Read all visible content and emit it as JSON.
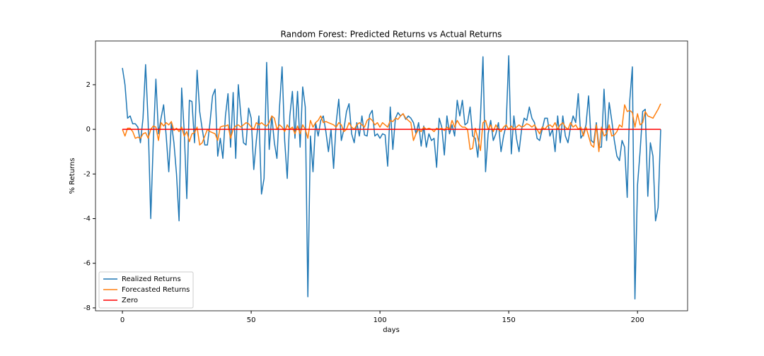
{
  "chart_data": {
    "type": "line",
    "title": "Random Forest: Predicted Returns vs Actual Returns",
    "xlabel": "days",
    "ylabel": "% Returns",
    "xlim": [
      -10.45,
      219.45
    ],
    "ylim": [
      -8.13,
      3.96
    ],
    "xticks": [
      0,
      50,
      100,
      150,
      200
    ],
    "yticks": [
      -8,
      -6,
      -4,
      -2,
      0,
      2
    ],
    "grid": false,
    "legend": "lower left",
    "x": [
      0,
      1,
      2,
      3,
      4,
      5,
      6,
      7,
      8,
      9,
      10,
      11,
      12,
      13,
      14,
      15,
      16,
      17,
      18,
      19,
      20,
      21,
      22,
      23,
      24,
      25,
      26,
      27,
      28,
      29,
      30,
      31,
      32,
      33,
      34,
      35,
      36,
      37,
      38,
      39,
      40,
      41,
      42,
      43,
      44,
      45,
      46,
      47,
      48,
      49,
      50,
      51,
      52,
      53,
      54,
      55,
      56,
      57,
      58,
      59,
      60,
      61,
      62,
      63,
      64,
      65,
      66,
      67,
      68,
      69,
      70,
      71,
      72,
      73,
      74,
      75,
      76,
      77,
      78,
      79,
      80,
      81,
      82,
      83,
      84,
      85,
      86,
      87,
      88,
      89,
      90,
      91,
      92,
      93,
      94,
      95,
      96,
      97,
      98,
      99,
      100,
      101,
      102,
      103,
      104,
      105,
      106,
      107,
      108,
      109,
      110,
      111,
      112,
      113,
      114,
      115,
      116,
      117,
      118,
      119,
      120,
      121,
      122,
      123,
      124,
      125,
      126,
      127,
      128,
      129,
      130,
      131,
      132,
      133,
      134,
      135,
      136,
      137,
      138,
      139,
      140,
      141,
      142,
      143,
      144,
      145,
      146,
      147,
      148,
      149,
      150,
      151,
      152,
      153,
      154,
      155,
      156,
      157,
      158,
      159,
      160,
      161,
      162,
      163,
      164,
      165,
      166,
      167,
      168,
      169,
      170,
      171,
      172,
      173,
      174,
      175,
      176,
      177,
      178,
      179,
      180,
      181,
      182,
      183,
      184,
      185,
      186,
      187,
      188,
      189,
      190,
      191,
      192,
      193,
      194,
      195,
      196,
      197,
      198,
      199,
      200,
      201,
      202,
      203,
      204,
      205,
      206,
      207,
      208,
      209
    ],
    "series": [
      {
        "name": "Realized Returns",
        "color": "#1f77b4",
        "values": [
          2.75,
          2.0,
          0.5,
          0.6,
          0.25,
          0.25,
          0.1,
          -0.6,
          0.5,
          2.9,
          0.3,
          -4.0,
          -0.5,
          2.25,
          -0.2,
          0.5,
          1.1,
          -0.3,
          -1.9,
          0.3,
          -0.6,
          -2.0,
          -4.1,
          1.85,
          -0.1,
          -3.1,
          1.3,
          1.25,
          -0.6,
          2.65,
          0.8,
          0.0,
          -0.7,
          -0.7,
          0.3,
          1.5,
          1.8,
          -1.2,
          -0.4,
          -1.3,
          0.6,
          1.6,
          -0.8,
          1.65,
          -1.3,
          2.0,
          0.6,
          -0.6,
          -0.7,
          0.95,
          0.5,
          -1.8,
          -0.5,
          0.6,
          -2.9,
          -2.2,
          3.0,
          -0.9,
          0.6,
          -0.6,
          -1.3,
          1.0,
          2.8,
          -0.5,
          -2.2,
          0.6,
          1.7,
          -0.4,
          1.7,
          -0.8,
          1.9,
          1.0,
          -7.5,
          -0.3,
          -1.9,
          0.3,
          -0.3,
          0.4,
          0.6,
          -0.1,
          -1.0,
          0.0,
          -1.75,
          0.3,
          1.35,
          -0.5,
          0.0,
          0.8,
          1.15,
          -0.2,
          -0.6,
          0.3,
          -0.3,
          0.6,
          -0.25,
          -0.3,
          0.65,
          0.85,
          -0.3,
          -0.2,
          -0.4,
          -0.2,
          -0.25,
          -1.65,
          1.0,
          -0.9,
          0.5,
          0.75,
          0.6,
          0.7,
          0.45,
          0.6,
          0.5,
          0.3,
          -0.2,
          0.3,
          -0.75,
          0.15,
          -0.8,
          -0.2,
          -0.5,
          -0.4,
          -1.7,
          0.5,
          0.1,
          -1.15,
          0.6,
          -0.2,
          0.2,
          -0.3,
          1.3,
          0.6,
          1.3,
          0.2,
          0.3,
          1.0,
          -0.3,
          -0.4,
          -1.25,
          0.5,
          3.25,
          -1.9,
          -0.2,
          0.4,
          -0.5,
          -0.2,
          0.3,
          -1.0,
          -0.3,
          0.2,
          3.3,
          -1.1,
          0.6,
          -0.4,
          -1.0,
          0.0,
          0.5,
          0.4,
          1.0,
          0.5,
          0.3,
          -0.4,
          -0.5,
          0.0,
          0.5,
          0.5,
          -0.3,
          0.0,
          -1.0,
          0.6,
          -0.6,
          0.6,
          -0.3,
          -0.6,
          0.1,
          0.6,
          0.3,
          1.6,
          -0.4,
          -0.2,
          0.2,
          1.5,
          -0.5,
          -0.6,
          0.3,
          -0.8,
          -0.8,
          1.8,
          -0.5,
          1.2,
          0.4,
          -0.5,
          -1.2,
          -1.4,
          -0.5,
          -0.8,
          -3.05,
          1.3,
          2.8,
          -7.6,
          -2.5,
          -1.0,
          0.8,
          0.9,
          -3.0,
          -0.6,
          -1.2,
          -4.1,
          -3.5,
          0.0
        ]
      },
      {
        "name": "Forecasted Returns",
        "color": "#ff7f0e",
        "values": [
          0,
          -0.3,
          0.05,
          0.05,
          -0.1,
          -0.4,
          -0.35,
          -0.4,
          -0.2,
          -0.15,
          -0.4,
          0.0,
          0.15,
          0.1,
          -0.5,
          0.3,
          0.15,
          0.3,
          0.2,
          0.35,
          -0.05,
          0.05,
          -0.1,
          0.1,
          -0.3,
          -0.1,
          -0.55,
          -0.2,
          -0.15,
          0.1,
          -0.7,
          -0.6,
          -0.3,
          0.0,
          -0.1,
          -0.15,
          -0.2,
          -0.5,
          0.1,
          0.15,
          0.15,
          0.2,
          -0.4,
          0.0,
          0.15,
          0.2,
          0.1,
          0.2,
          0.3,
          0.25,
          0.1,
          0.0,
          0.3,
          0.2,
          0.3,
          0.2,
          0.15,
          0.3,
          0.6,
          0.5,
          0.0,
          0.2,
          0.1,
          -0.1,
          0.2,
          0.0,
          0.1,
          -0.2,
          0.15,
          -0.2,
          0.2,
          0.0,
          -0.4,
          0.4,
          0.1,
          0.3,
          0.4,
          0.6,
          0.3,
          0.35,
          0.3,
          0.25,
          0.2,
          0.1,
          0.3,
          0.2,
          -0.1,
          0.0,
          0.3,
          0.1,
          0.0,
          0.2,
          0.3,
          0.2,
          0.1,
          0.4,
          0.5,
          0.4,
          0.2,
          0.3,
          0.1,
          0.3,
          0.2,
          0.1,
          0.4,
          0.35,
          0.5,
          0.45,
          0.6,
          0.7,
          0.5,
          0.4,
          0.3,
          -0.5,
          -0.2,
          0.0,
          -0.1,
          0.1,
          0.0,
          0.05,
          0.0,
          -0.1,
          0.05,
          0.0,
          0.05,
          -0.05,
          0.1,
          0.0,
          0.4,
          0.1,
          0.4,
          0.2,
          0.1,
          0.1,
          0.0,
          -0.9,
          -0.85,
          0.05,
          -0.4,
          -0.95,
          0.3,
          0.4,
          0.0,
          0.2,
          -0.1,
          0.2,
          0.0,
          -0.1,
          0.1,
          0.2,
          0.0,
          0.15,
          0.0,
          0.1,
          0.2,
          0.1,
          0.15,
          0.25,
          0.2,
          0.1,
          0.2,
          0.0,
          -0.2,
          0.1,
          0.0,
          0.15,
          0.2,
          0.1,
          0.3,
          0.0,
          0.2,
          0.3,
          0.1,
          0.0,
          0.3,
          0.1,
          0.2,
          0.0,
          0.1,
          -0.3,
          0.1,
          -0.3,
          -0.7,
          -0.8,
          0.2,
          -1.0,
          0.1,
          -0.3,
          -0.2,
          0.2,
          -0.3,
          -0.25,
          -0.1,
          0.2,
          0.1,
          1.1,
          0.8,
          0.85,
          0.75,
          0.1,
          0.7,
          0.2,
          0.3,
          0.8,
          0.6,
          0.55,
          0.5,
          0.7,
          0.9,
          1.15
        ]
      },
      {
        "name": "Zero",
        "color": "#ff0000",
        "x": [
          0,
          209
        ],
        "values": [
          0,
          0
        ]
      }
    ]
  }
}
